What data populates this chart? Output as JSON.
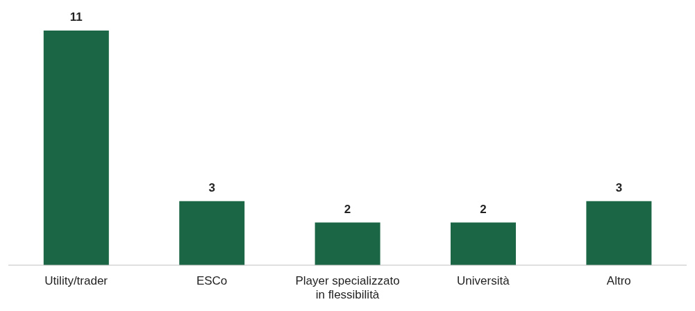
{
  "chart_data": {
    "type": "bar",
    "categories": [
      "Utility/trader",
      "ESCo",
      "Player specializzato in flessibilità",
      "Università",
      "Altro"
    ],
    "values": [
      11,
      3,
      2,
      2,
      3
    ],
    "color": "#1a6645",
    "data_labels": true,
    "grid": false,
    "legend": false
  }
}
